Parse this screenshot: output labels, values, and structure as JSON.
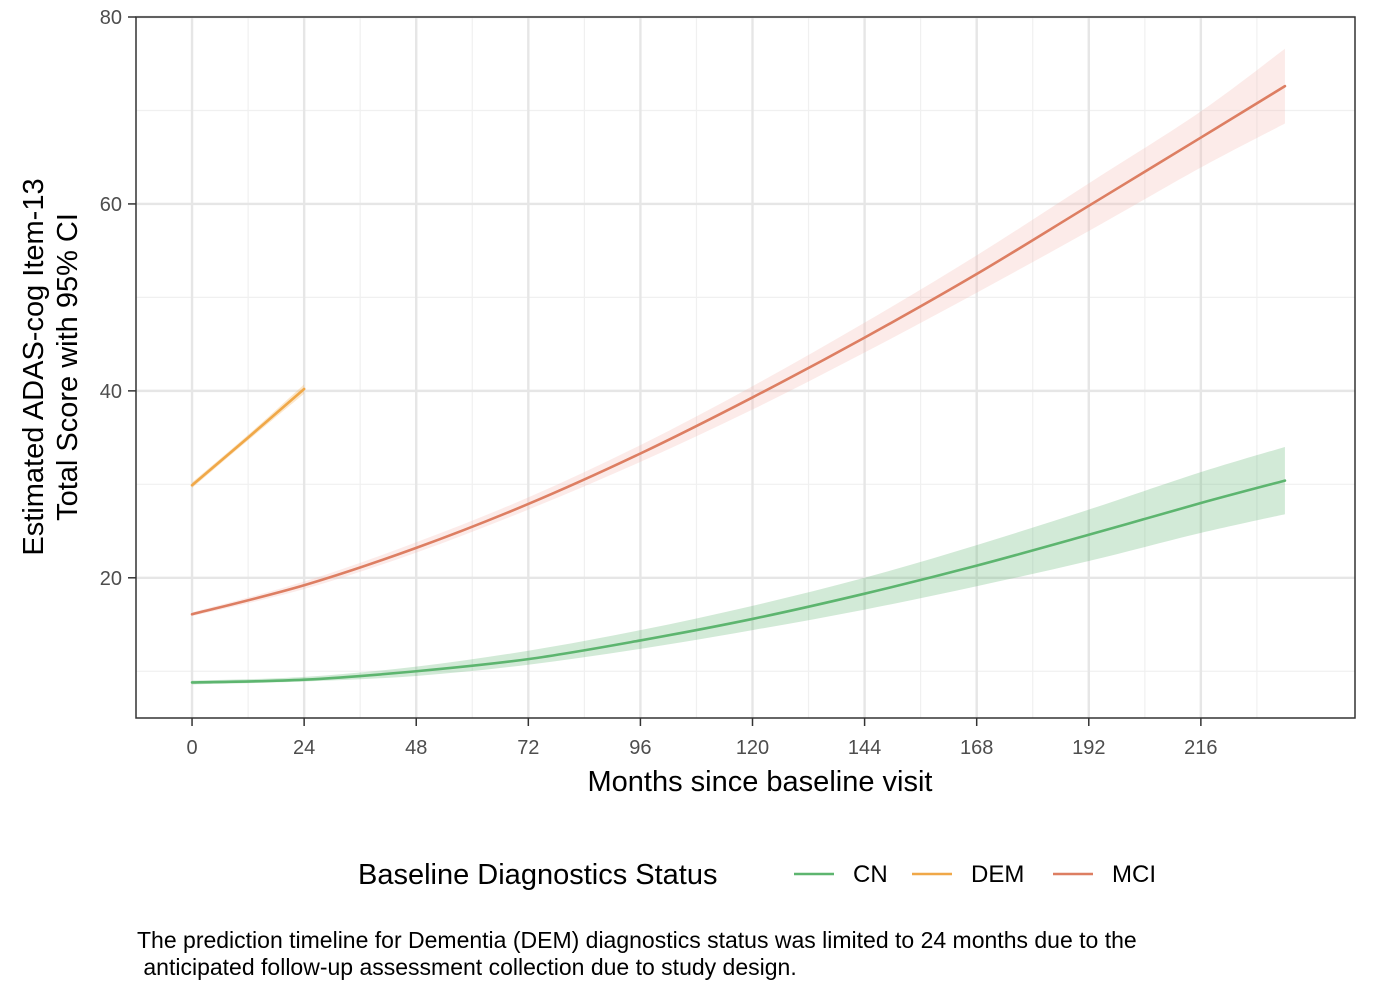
{
  "chart_data": {
    "type": "line",
    "title": "",
    "xlabel": "Months since baseline visit",
    "ylabel_lines": [
      "Estimated ADAS-cog Item-13",
      "Total Score with 95% CI"
    ],
    "xlim": [
      -12,
      249
    ],
    "ylim": [
      5,
      80
    ],
    "x_major_ticks": [
      0,
      24,
      48,
      72,
      96,
      120,
      144,
      168,
      192,
      216
    ],
    "x_minor_ticks": [
      -12,
      12,
      36,
      60,
      84,
      108,
      132,
      156,
      180,
      204,
      228
    ],
    "y_major_ticks": [
      20,
      40,
      60,
      80
    ],
    "y_minor_ticks": [
      10,
      30,
      50,
      70
    ],
    "grid": true,
    "legend_title": "Baseline Diagnostics Status",
    "legend_position": "bottom",
    "series": [
      {
        "name": "CN",
        "color": "#5db56f",
        "band_color": "#5db56f",
        "x": [
          0,
          24,
          48,
          72,
          96,
          120,
          144,
          168,
          192,
          216,
          234
        ],
        "y": [
          8.8,
          9.1,
          10.0,
          11.3,
          13.3,
          15.6,
          18.3,
          21.3,
          24.6,
          28.0,
          30.4
        ],
        "lower": [
          8.6,
          8.9,
          9.5,
          10.7,
          12.4,
          14.4,
          16.6,
          19.1,
          21.8,
          24.8,
          26.8
        ],
        "upper": [
          9.0,
          9.4,
          10.5,
          12.2,
          14.4,
          17.0,
          20.0,
          23.5,
          27.3,
          31.3,
          34.0
        ]
      },
      {
        "name": "DEM",
        "color": "#f0a848",
        "band_color": "#f0a848",
        "x": [
          0,
          12,
          24
        ],
        "y": [
          29.9,
          35.0,
          40.2
        ],
        "lower": [
          29.6,
          34.7,
          39.7
        ],
        "upper": [
          30.2,
          35.3,
          40.7
        ]
      },
      {
        "name": "MCI",
        "color": "#dd7e62",
        "band_color": "#f4b8b0",
        "x": [
          0,
          24,
          48,
          72,
          96,
          120,
          144,
          168,
          192,
          216,
          234
        ],
        "y": [
          16.1,
          19.2,
          23.2,
          27.9,
          33.3,
          39.3,
          45.7,
          52.5,
          59.8,
          67.1,
          72.6
        ],
        "lower": [
          15.9,
          18.8,
          22.7,
          27.3,
          32.4,
          38.0,
          44.1,
          50.5,
          57.1,
          63.9,
          68.6
        ],
        "upper": [
          16.3,
          19.6,
          23.8,
          28.6,
          34.2,
          40.5,
          47.3,
          54.5,
          62.2,
          69.9,
          76.6
        ]
      }
    ],
    "caption": "The prediction timeline for Dementia (DEM) diagnostics status was limited to 24 months due to the\n anticipated follow-up assessment collection due to study design."
  }
}
